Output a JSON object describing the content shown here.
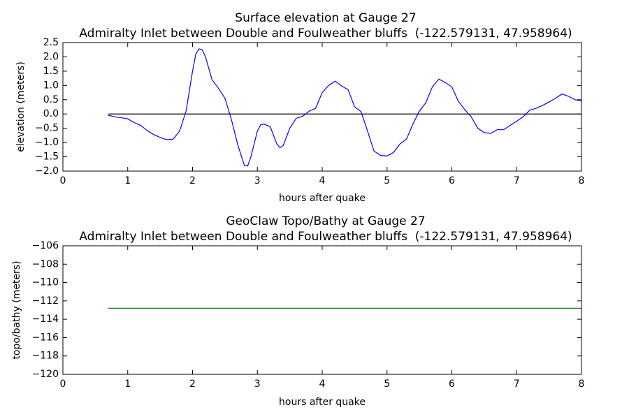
{
  "chart_data": [
    {
      "type": "line",
      "title": "Surface elevation at Gauge 27",
      "subtitle": "Admiralty Inlet between Double and Foulweather bluffs  (-122.579131, 47.958964)",
      "xlabel": "hours after quake",
      "ylabel": "elevation (meters)",
      "xlim": [
        0,
        8
      ],
      "xticks": [
        0,
        1,
        2,
        3,
        4,
        5,
        6,
        7,
        8
      ],
      "ylim": [
        -2.0,
        2.5
      ],
      "yticks": [
        {
          "value": -2.0,
          "label": "−2.0"
        },
        {
          "value": -1.5,
          "label": "−1.5"
        },
        {
          "value": -1.0,
          "label": "−1.0"
        },
        {
          "value": -0.5,
          "label": "−0.5"
        },
        {
          "value": 0,
          "label": "0.0"
        },
        0.5,
        {
          "value": 1.0,
          "label": "1.0"
        },
        1.5,
        {
          "value": 2.0,
          "label": "2.0"
        },
        2.5
      ],
      "hline": {
        "y": 0,
        "color": "#000000"
      },
      "x": [
        0.7,
        0.75,
        0.8,
        0.9,
        1.0,
        1.1,
        1.2,
        1.3,
        1.4,
        1.5,
        1.6,
        1.7,
        1.8,
        1.9,
        2.0,
        2.05,
        2.1,
        2.15,
        2.2,
        2.3,
        2.4,
        2.5,
        2.6,
        2.7,
        2.8,
        2.85,
        2.9,
        3.0,
        3.05,
        3.1,
        3.2,
        3.3,
        3.35,
        3.4,
        3.5,
        3.6,
        3.7,
        3.8,
        3.9,
        4.0,
        4.1,
        4.2,
        4.3,
        4.4,
        4.5,
        4.6,
        4.7,
        4.8,
        4.9,
        5.0,
        5.1,
        5.2,
        5.3,
        5.4,
        5.5,
        5.6,
        5.7,
        5.8,
        5.9,
        6.0,
        6.1,
        6.2,
        6.3,
        6.4,
        6.5,
        6.6,
        6.7,
        6.8,
        6.9,
        7.0,
        7.1,
        7.2,
        7.3,
        7.4,
        7.5,
        7.6,
        7.7,
        7.8,
        7.9,
        8.0
      ],
      "series": [
        {
          "color": "#0000ff",
          "values": [
            -0.05,
            -0.07,
            -0.1,
            -0.13,
            -0.17,
            -0.3,
            -0.4,
            -0.58,
            -0.72,
            -0.82,
            -0.9,
            -0.88,
            -0.6,
            0.1,
            1.5,
            2.1,
            2.28,
            2.25,
            2.0,
            1.2,
            0.9,
            0.55,
            -0.2,
            -1.1,
            -1.8,
            -1.82,
            -1.5,
            -0.6,
            -0.38,
            -0.35,
            -0.45,
            -1.05,
            -1.18,
            -1.1,
            -0.5,
            -0.15,
            -0.08,
            0.1,
            0.2,
            0.75,
            1.0,
            1.15,
            0.98,
            0.85,
            0.25,
            0.08,
            -0.6,
            -1.3,
            -1.45,
            -1.47,
            -1.35,
            -1.05,
            -0.88,
            -0.35,
            0.1,
            0.4,
            0.95,
            1.22,
            1.1,
            0.95,
            0.45,
            0.15,
            -0.1,
            -0.5,
            -0.65,
            -0.68,
            -0.55,
            -0.55,
            -0.4,
            -0.25,
            -0.1,
            0.13,
            0.2,
            0.3,
            0.42,
            0.55,
            0.7,
            0.62,
            0.5,
            0.45
          ]
        }
      ]
    },
    {
      "type": "line",
      "title": "GeoClaw Topo/Bathy at Gauge 27",
      "subtitle": "Admiralty Inlet between Double and Foulweather bluffs  (-122.579131, 47.958964)",
      "xlabel": "hours after quake",
      "ylabel": "topo/bathy (meters)",
      "xlim": [
        0,
        8
      ],
      "xticks": [
        0,
        1,
        2,
        3,
        4,
        5,
        6,
        7,
        8
      ],
      "ylim": [
        -120,
        -106
      ],
      "yticks": [
        {
          "value": -120,
          "label": "−120"
        },
        {
          "value": -118,
          "label": "−118"
        },
        {
          "value": -116,
          "label": "−116"
        },
        {
          "value": -114,
          "label": "−114"
        },
        {
          "value": -112,
          "label": "−112"
        },
        {
          "value": -110,
          "label": "−110"
        },
        {
          "value": -108,
          "label": "−108"
        },
        {
          "value": -106,
          "label": "−106"
        }
      ],
      "x": [
        0.7,
        8
      ],
      "series": [
        {
          "color": "#008000",
          "values": [
            -112.8,
            -112.8
          ]
        }
      ]
    }
  ]
}
